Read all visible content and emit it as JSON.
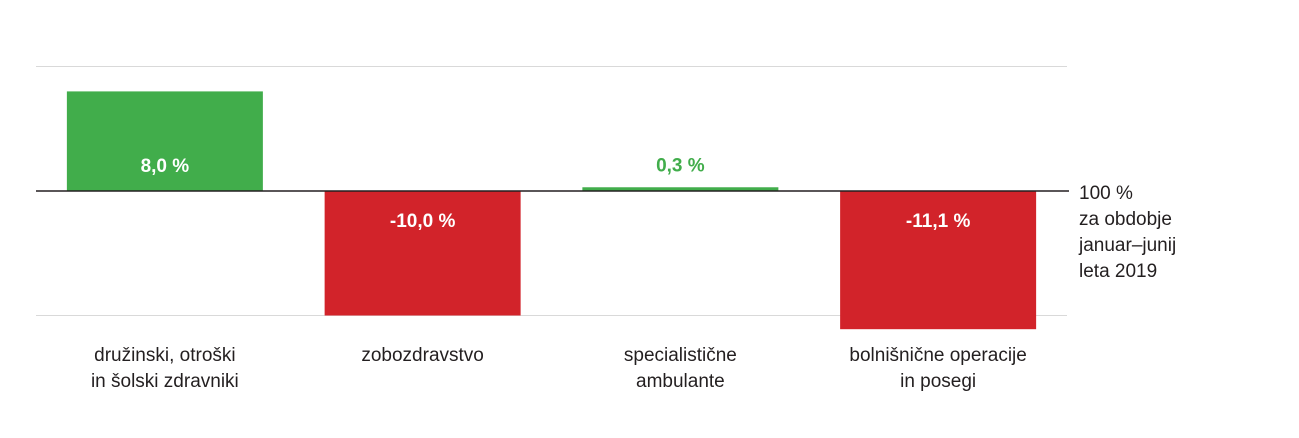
{
  "chart_data": {
    "type": "bar",
    "categories": [
      [
        "družinski, otroški",
        "in šolski zdravniki"
      ],
      [
        "zobozdravstvo"
      ],
      [
        "specialistične",
        "ambulante"
      ],
      [
        "bolnišnične operacije",
        "in posegi"
      ]
    ],
    "values": [
      8.0,
      -10.0,
      0.3,
      -11.1
    ],
    "data_labels": [
      "8,0 %",
      "-10,0 %",
      "0,3 %",
      "-11,1 %"
    ],
    "reference_line": {
      "value": 0,
      "label": [
        "100 %",
        "za obdobje",
        "januar–junij",
        "leta 2019"
      ]
    },
    "ylim": [
      -11.1,
      10
    ],
    "gridlines": [
      10,
      -10
    ],
    "grid": true,
    "legend": false,
    "colors": {
      "positive": "#41ad4b",
      "negative": "#d2232a",
      "positive_label_outside": "#41ad4b",
      "label_inside": "#ffffff",
      "axis": "#231f20",
      "grid": "#d9d9d9"
    }
  }
}
